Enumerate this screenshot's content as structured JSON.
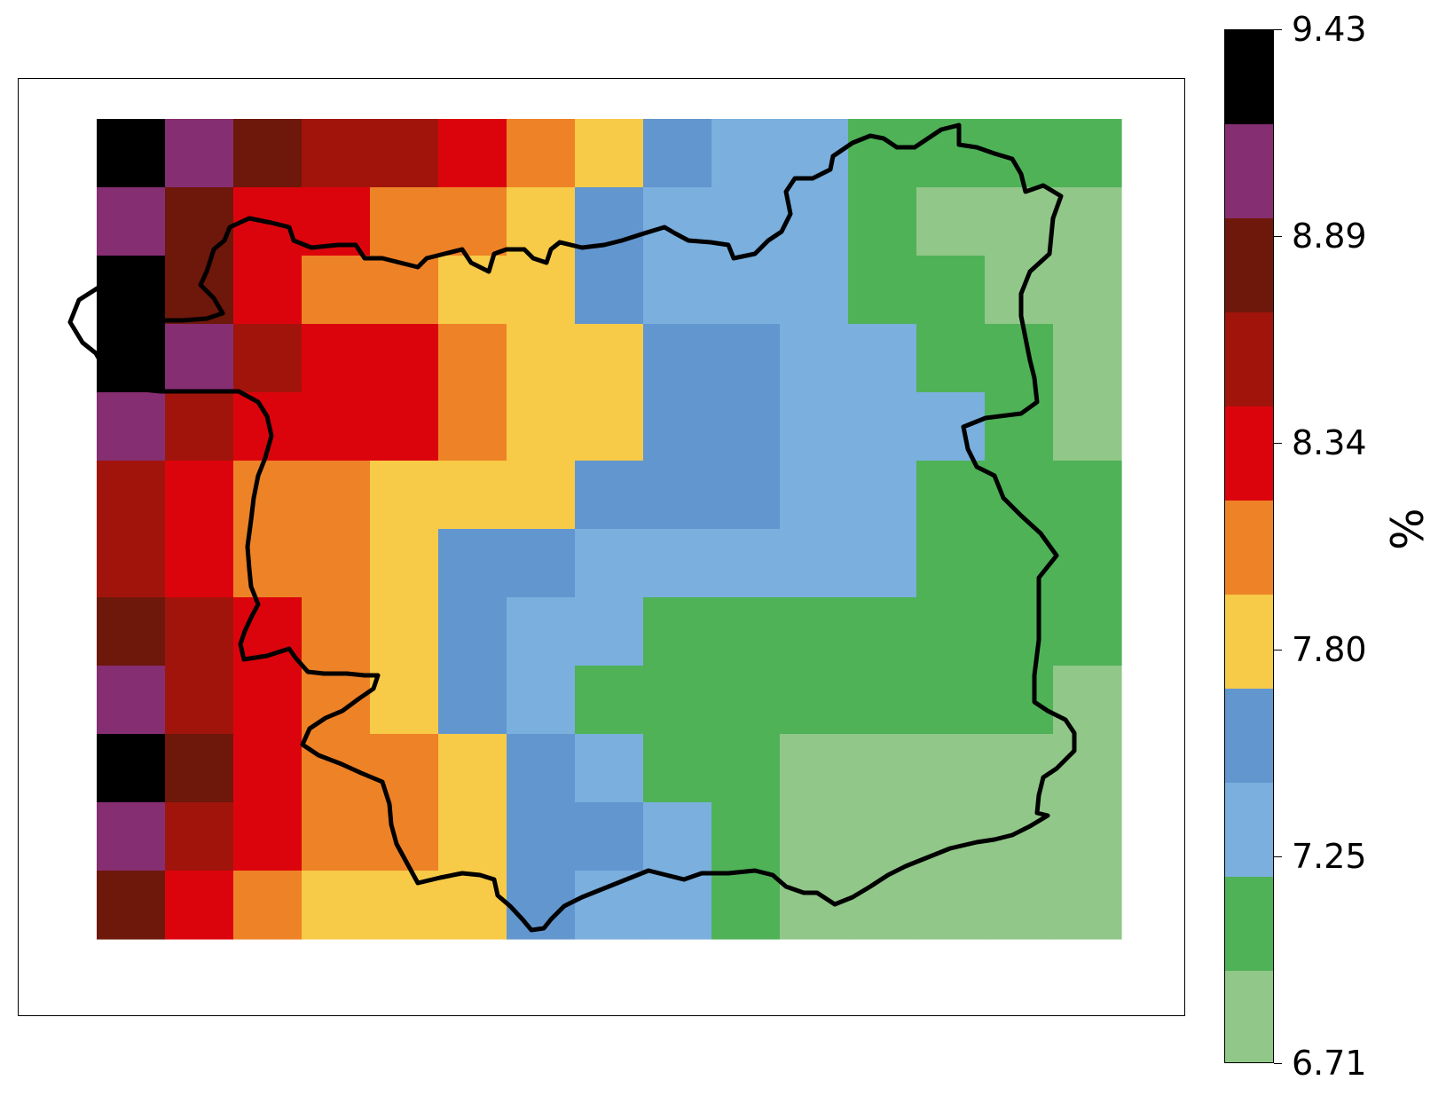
{
  "map": {
    "grid": {
      "nx": 15,
      "ny": 12,
      "cells": [
        [
          9,
          8,
          7,
          6,
          6,
          5,
          4,
          3,
          2,
          1,
          1,
          0,
          0,
          0,
          0
        ],
        [
          8,
          7,
          5,
          5,
          4,
          4,
          3,
          2,
          1,
          1,
          1,
          0,
          -1,
          -1,
          -1
        ],
        [
          9,
          7,
          5,
          4,
          4,
          3,
          3,
          2,
          1,
          1,
          1,
          0,
          0,
          -1,
          -1
        ],
        [
          9,
          8,
          6,
          5,
          5,
          4,
          3,
          3,
          2,
          2,
          1,
          1,
          0,
          0,
          -1
        ],
        [
          8,
          6,
          5,
          5,
          5,
          4,
          3,
          3,
          2,
          2,
          1,
          1,
          1,
          0,
          -1
        ],
        [
          6,
          5,
          4,
          4,
          3,
          3,
          3,
          2,
          2,
          2,
          1,
          1,
          0,
          0,
          0
        ],
        [
          6,
          5,
          4,
          4,
          3,
          2,
          2,
          1,
          1,
          1,
          1,
          1,
          0,
          0,
          0
        ],
        [
          7,
          6,
          5,
          4,
          3,
          2,
          1,
          1,
          0,
          0,
          0,
          0,
          0,
          0,
          0
        ],
        [
          8,
          6,
          5,
          4,
          3,
          2,
          1,
          0,
          0,
          0,
          0,
          0,
          0,
          0,
          -1
        ],
        [
          9,
          7,
          5,
          4,
          4,
          3,
          2,
          1,
          0,
          0,
          -1,
          -1,
          -1,
          -1,
          -1
        ],
        [
          8,
          6,
          5,
          4,
          4,
          3,
          2,
          2,
          1,
          0,
          -1,
          -1,
          -1,
          -1,
          -1
        ],
        [
          7,
          5,
          4,
          3,
          3,
          3,
          2,
          1,
          1,
          0,
          -1,
          -1,
          -1,
          -1,
          -1
        ]
      ],
      "colors": [
        "#4fb257",
        "#7aafde",
        "#6296cf",
        "#f7ca47",
        "#ee8227",
        "#dc040c",
        "#a1140c",
        "#6e170b",
        "#862e72",
        "#000000"
      ],
      "outside_color": "#91c788"
    },
    "boundary": {
      "stroke": "#000000",
      "points": [
        [
          598,
          1047
        ],
        [
          588,
          1035
        ],
        [
          574,
          1020
        ],
        [
          560,
          1008
        ],
        [
          556,
          990
        ],
        [
          540,
          985
        ],
        [
          520,
          983
        ],
        [
          495,
          988
        ],
        [
          470,
          994
        ],
        [
          458,
          972
        ],
        [
          446,
          950
        ],
        [
          440,
          928
        ],
        [
          438,
          905
        ],
        [
          430,
          880
        ],
        [
          406,
          870
        ],
        [
          384,
          860
        ],
        [
          358,
          850
        ],
        [
          340,
          838
        ],
        [
          348,
          820
        ],
        [
          366,
          808
        ],
        [
          385,
          800
        ],
        [
          404,
          786
        ],
        [
          420,
          775
        ],
        [
          425,
          760
        ],
        [
          410,
          760
        ],
        [
          390,
          758
        ],
        [
          364,
          758
        ],
        [
          346,
          756
        ],
        [
          332,
          740
        ],
        [
          325,
          730
        ],
        [
          300,
          738
        ],
        [
          274,
          742
        ],
        [
          270,
          725
        ],
        [
          275,
          710
        ],
        [
          283,
          693
        ],
        [
          290,
          680
        ],
        [
          282,
          660
        ],
        [
          280,
          640
        ],
        [
          278,
          615
        ],
        [
          282,
          585
        ],
        [
          285,
          560
        ],
        [
          290,
          535
        ],
        [
          298,
          515
        ],
        [
          305,
          490
        ],
        [
          300,
          468
        ],
        [
          290,
          452
        ],
        [
          268,
          440
        ],
        [
          240,
          440
        ],
        [
          210,
          440
        ],
        [
          180,
          440
        ],
        [
          160,
          438
        ],
        [
          150,
          430
        ],
        [
          120,
          420
        ],
        [
          107,
          397
        ],
        [
          92,
          385
        ],
        [
          78,
          362
        ],
        [
          88,
          337
        ],
        [
          110,
          323
        ],
        [
          135,
          322
        ],
        [
          160,
          340
        ],
        [
          180,
          360
        ],
        [
          205,
          360
        ],
        [
          232,
          358
        ],
        [
          250,
          352
        ],
        [
          240,
          335
        ],
        [
          225,
          320
        ],
        [
          232,
          305
        ],
        [
          240,
          280
        ],
        [
          252,
          270
        ],
        [
          258,
          255
        ],
        [
          280,
          245
        ],
        [
          305,
          250
        ],
        [
          325,
          255
        ],
        [
          330,
          270
        ],
        [
          350,
          278
        ],
        [
          380,
          275
        ],
        [
          400,
          275
        ],
        [
          410,
          290
        ],
        [
          430,
          290
        ],
        [
          450,
          295
        ],
        [
          470,
          300
        ],
        [
          480,
          290
        ],
        [
          500,
          285
        ],
        [
          520,
          280
        ],
        [
          530,
          295
        ],
        [
          550,
          305
        ],
        [
          556,
          285
        ],
        [
          570,
          280
        ],
        [
          590,
          280
        ],
        [
          600,
          290
        ],
        [
          615,
          295
        ],
        [
          620,
          280
        ],
        [
          630,
          272
        ],
        [
          655,
          278
        ],
        [
          680,
          275
        ],
        [
          700,
          270
        ],
        [
          725,
          262
        ],
        [
          748,
          255
        ],
        [
          760,
          262
        ],
        [
          775,
          270
        ],
        [
          800,
          272
        ],
        [
          820,
          275
        ],
        [
          826,
          290
        ],
        [
          850,
          285
        ],
        [
          865,
          270
        ],
        [
          880,
          260
        ],
        [
          890,
          240
        ],
        [
          885,
          215
        ],
        [
          895,
          200
        ],
        [
          915,
          200
        ],
        [
          935,
          190
        ],
        [
          938,
          175
        ],
        [
          960,
          160
        ],
        [
          980,
          152
        ],
        [
          995,
          155
        ],
        [
          1010,
          165
        ],
        [
          1030,
          165
        ],
        [
          1045,
          155
        ],
        [
          1060,
          145
        ],
        [
          1080,
          140
        ],
        [
          1080,
          162
        ],
        [
          1100,
          165
        ],
        [
          1120,
          172
        ],
        [
          1140,
          178
        ],
        [
          1150,
          195
        ],
        [
          1155,
          215
        ],
        [
          1175,
          208
        ],
        [
          1195,
          220
        ],
        [
          1186,
          245
        ],
        [
          1184,
          265
        ],
        [
          1182,
          285
        ],
        [
          1160,
          305
        ],
        [
          1150,
          330
        ],
        [
          1150,
          355
        ],
        [
          1155,
          380
        ],
        [
          1160,
          405
        ],
        [
          1165,
          425
        ],
        [
          1168,
          452
        ],
        [
          1150,
          465
        ],
        [
          1110,
          470
        ],
        [
          1085,
          480
        ],
        [
          1090,
          505
        ],
        [
          1100,
          525
        ],
        [
          1120,
          535
        ],
        [
          1130,
          560
        ],
        [
          1150,
          580
        ],
        [
          1172,
          600
        ],
        [
          1190,
          625
        ],
        [
          1170,
          650
        ],
        [
          1170,
          680
        ],
        [
          1170,
          720
        ],
        [
          1165,
          760
        ],
        [
          1165,
          790
        ],
        [
          1180,
          800
        ],
        [
          1200,
          810
        ],
        [
          1210,
          825
        ],
        [
          1210,
          845
        ],
        [
          1190,
          865
        ],
        [
          1175,
          875
        ],
        [
          1170,
          895
        ],
        [
          1168,
          915
        ],
        [
          1180,
          918
        ],
        [
          1160,
          930
        ],
        [
          1140,
          940
        ],
        [
          1120,
          945
        ],
        [
          1100,
          948
        ],
        [
          1070,
          955
        ],
        [
          1045,
          965
        ],
        [
          1020,
          975
        ],
        [
          1000,
          985
        ],
        [
          980,
          998
        ],
        [
          960,
          1010
        ],
        [
          940,
          1018
        ],
        [
          920,
          1005
        ],
        [
          905,
          1005
        ],
        [
          885,
          998
        ],
        [
          870,
          985
        ],
        [
          850,
          980
        ],
        [
          820,
          983
        ],
        [
          790,
          983
        ],
        [
          770,
          990
        ],
        [
          750,
          985
        ],
        [
          730,
          980
        ],
        [
          705,
          990
        ],
        [
          680,
          1000
        ],
        [
          655,
          1010
        ],
        [
          635,
          1020
        ],
        [
          620,
          1035
        ],
        [
          612,
          1045
        ],
        [
          598,
          1047
        ]
      ]
    }
  },
  "colorbar": {
    "unit_label": "%",
    "tick_labels": [
      "6.71",
      "7.25",
      "7.80",
      "8.34",
      "8.89",
      "9.43"
    ],
    "bands": [
      "#91c788",
      "#4fb257",
      "#7aafde",
      "#6296cf",
      "#f7ca47",
      "#ee8227",
      "#dc040c",
      "#a1140c",
      "#6e170b",
      "#862e72",
      "#000000"
    ]
  }
}
